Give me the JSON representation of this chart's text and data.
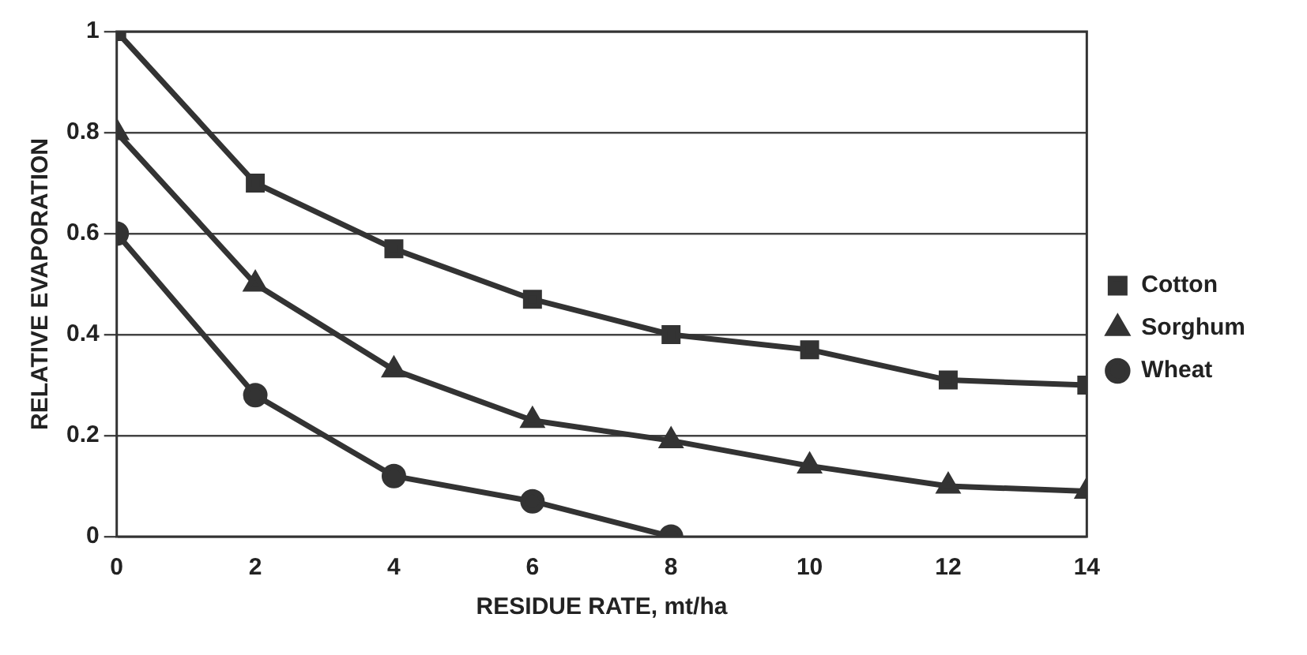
{
  "chart_data": {
    "type": "line",
    "xlabel": "RESIDUE RATE, mt/ha",
    "ylabel": "RELATIVE EVAPORATION",
    "xlim": [
      0,
      14
    ],
    "xticks": [
      0,
      2,
      4,
      6,
      8,
      10,
      12,
      14
    ],
    "ylim": [
      0,
      1
    ],
    "yticks": [
      0,
      0.2,
      0.4,
      0.6,
      0.8,
      1
    ],
    "grid": "y",
    "legend": "right",
    "line_style": "solid",
    "series": [
      {
        "name": "Cotton",
        "color": "#333333",
        "marker": "square",
        "x": [
          0,
          2,
          4,
          6,
          8,
          10,
          12,
          14
        ],
        "values": [
          1,
          0.7,
          0.57,
          0.47,
          0.4,
          0.37,
          0.31,
          0.3
        ]
      },
      {
        "name": "Sorghum",
        "color": "#333333",
        "marker": "triangle",
        "x": [
          0,
          2,
          4,
          6,
          8,
          10,
          12,
          14
        ],
        "values": [
          0.8,
          0.5,
          0.33,
          0.23,
          0.19,
          0.14,
          0.1,
          0.09
        ]
      },
      {
        "name": "Wheat",
        "color": "#333333",
        "marker": "circle",
        "x": [
          0,
          2,
          4,
          6,
          8
        ],
        "values": [
          0.6,
          0.28,
          0.12,
          0.07,
          0
        ]
      }
    ]
  }
}
